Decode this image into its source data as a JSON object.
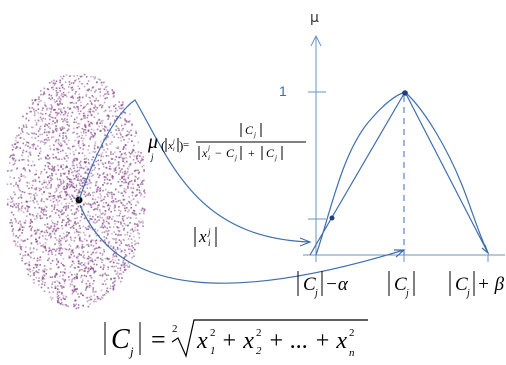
{
  "diagram": {
    "y_axis_symbol": "μ",
    "one_tick_label": "1",
    "formula_mu": "μ",
    "formula_mu_sub": "j",
    "formula_arg_x": "x",
    "formula_arg_sub": "i",
    "formula_arg_sup": "j",
    "formula_num": "C",
    "formula_num_sub": "j",
    "formula_den_x": "x",
    "formula_den_sub": "i",
    "formula_den_sup": "j",
    "formula_den_minus": "−",
    "formula_den_c": "C",
    "formula_den_c_sub": "j",
    "formula_den_plus": "+",
    "formula_den_c2": "C",
    "formula_den_c2_sub": "j",
    "point_label_x": "x",
    "point_label_sub": "i",
    "point_label_sup": "j",
    "xlabel_left_c": "C",
    "xlabel_left_sub": "j",
    "xlabel_left_op": "−α",
    "xlabel_mid_c": "C",
    "xlabel_mid_sub": "j",
    "xlabel_right_c": "C",
    "xlabel_right_sub": "j",
    "xlabel_right_op": "+ β",
    "norm_c": "C",
    "norm_c_sub": "j",
    "norm_eq": "=",
    "norm_root_index": "2",
    "norm_terms": [
      "x",
      "1",
      "2",
      "+ x",
      "2",
      "2",
      "+ ... + x",
      "n",
      "2"
    ]
  },
  "colors": {
    "axis": "#6a95c7",
    "curve": "#3f6fae",
    "cluster": "#8b4f8f",
    "label_one": "#2f6fbf"
  }
}
